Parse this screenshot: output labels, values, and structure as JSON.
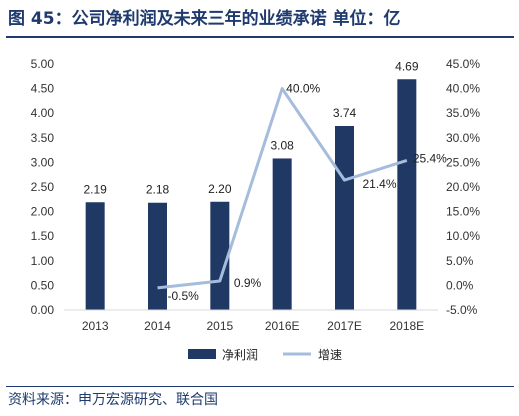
{
  "title": "图 45：公司净利润及未来三年的业绩承诺 单位：亿",
  "source": "资料来源：申万宏源研究、联合国",
  "colors": {
    "bar": "#1f3864",
    "line": "#a6bcdc",
    "title": "#1f3a6e",
    "axis": "#d9d9d9"
  },
  "chart_data": {
    "type": "bar",
    "categories": [
      "2013",
      "2014",
      "2015",
      "2016E",
      "2017E",
      "2018E"
    ],
    "series": [
      {
        "name": "净利润",
        "type": "bar",
        "axis": "left",
        "values": [
          2.19,
          2.18,
          2.2,
          3.08,
          3.74,
          4.69
        ],
        "labels": [
          "2.19",
          "2.18",
          "2.20",
          "3.08",
          "3.74",
          "4.69"
        ]
      },
      {
        "name": "增速",
        "type": "line",
        "axis": "right",
        "values": [
          null,
          -0.5,
          0.9,
          40.0,
          21.4,
          25.4
        ],
        "labels": [
          "",
          "-0.5%",
          "0.9%",
          "40.0%",
          "21.4%",
          "25.4%"
        ]
      }
    ],
    "left_axis": {
      "min": 0,
      "max": 5,
      "ticks": [
        "0.00",
        "0.50",
        "1.00",
        "1.50",
        "2.00",
        "2.50",
        "3.00",
        "3.50",
        "4.00",
        "4.50",
        "5.00"
      ]
    },
    "right_axis": {
      "min": -5,
      "max": 45,
      "ticks": [
        "-5.0%",
        "0.0%",
        "5.0%",
        "10.0%",
        "15.0%",
        "20.0%",
        "25.0%",
        "30.0%",
        "35.0%",
        "40.0%",
        "45.0%"
      ]
    },
    "grid": false,
    "legend_position": "bottom"
  }
}
